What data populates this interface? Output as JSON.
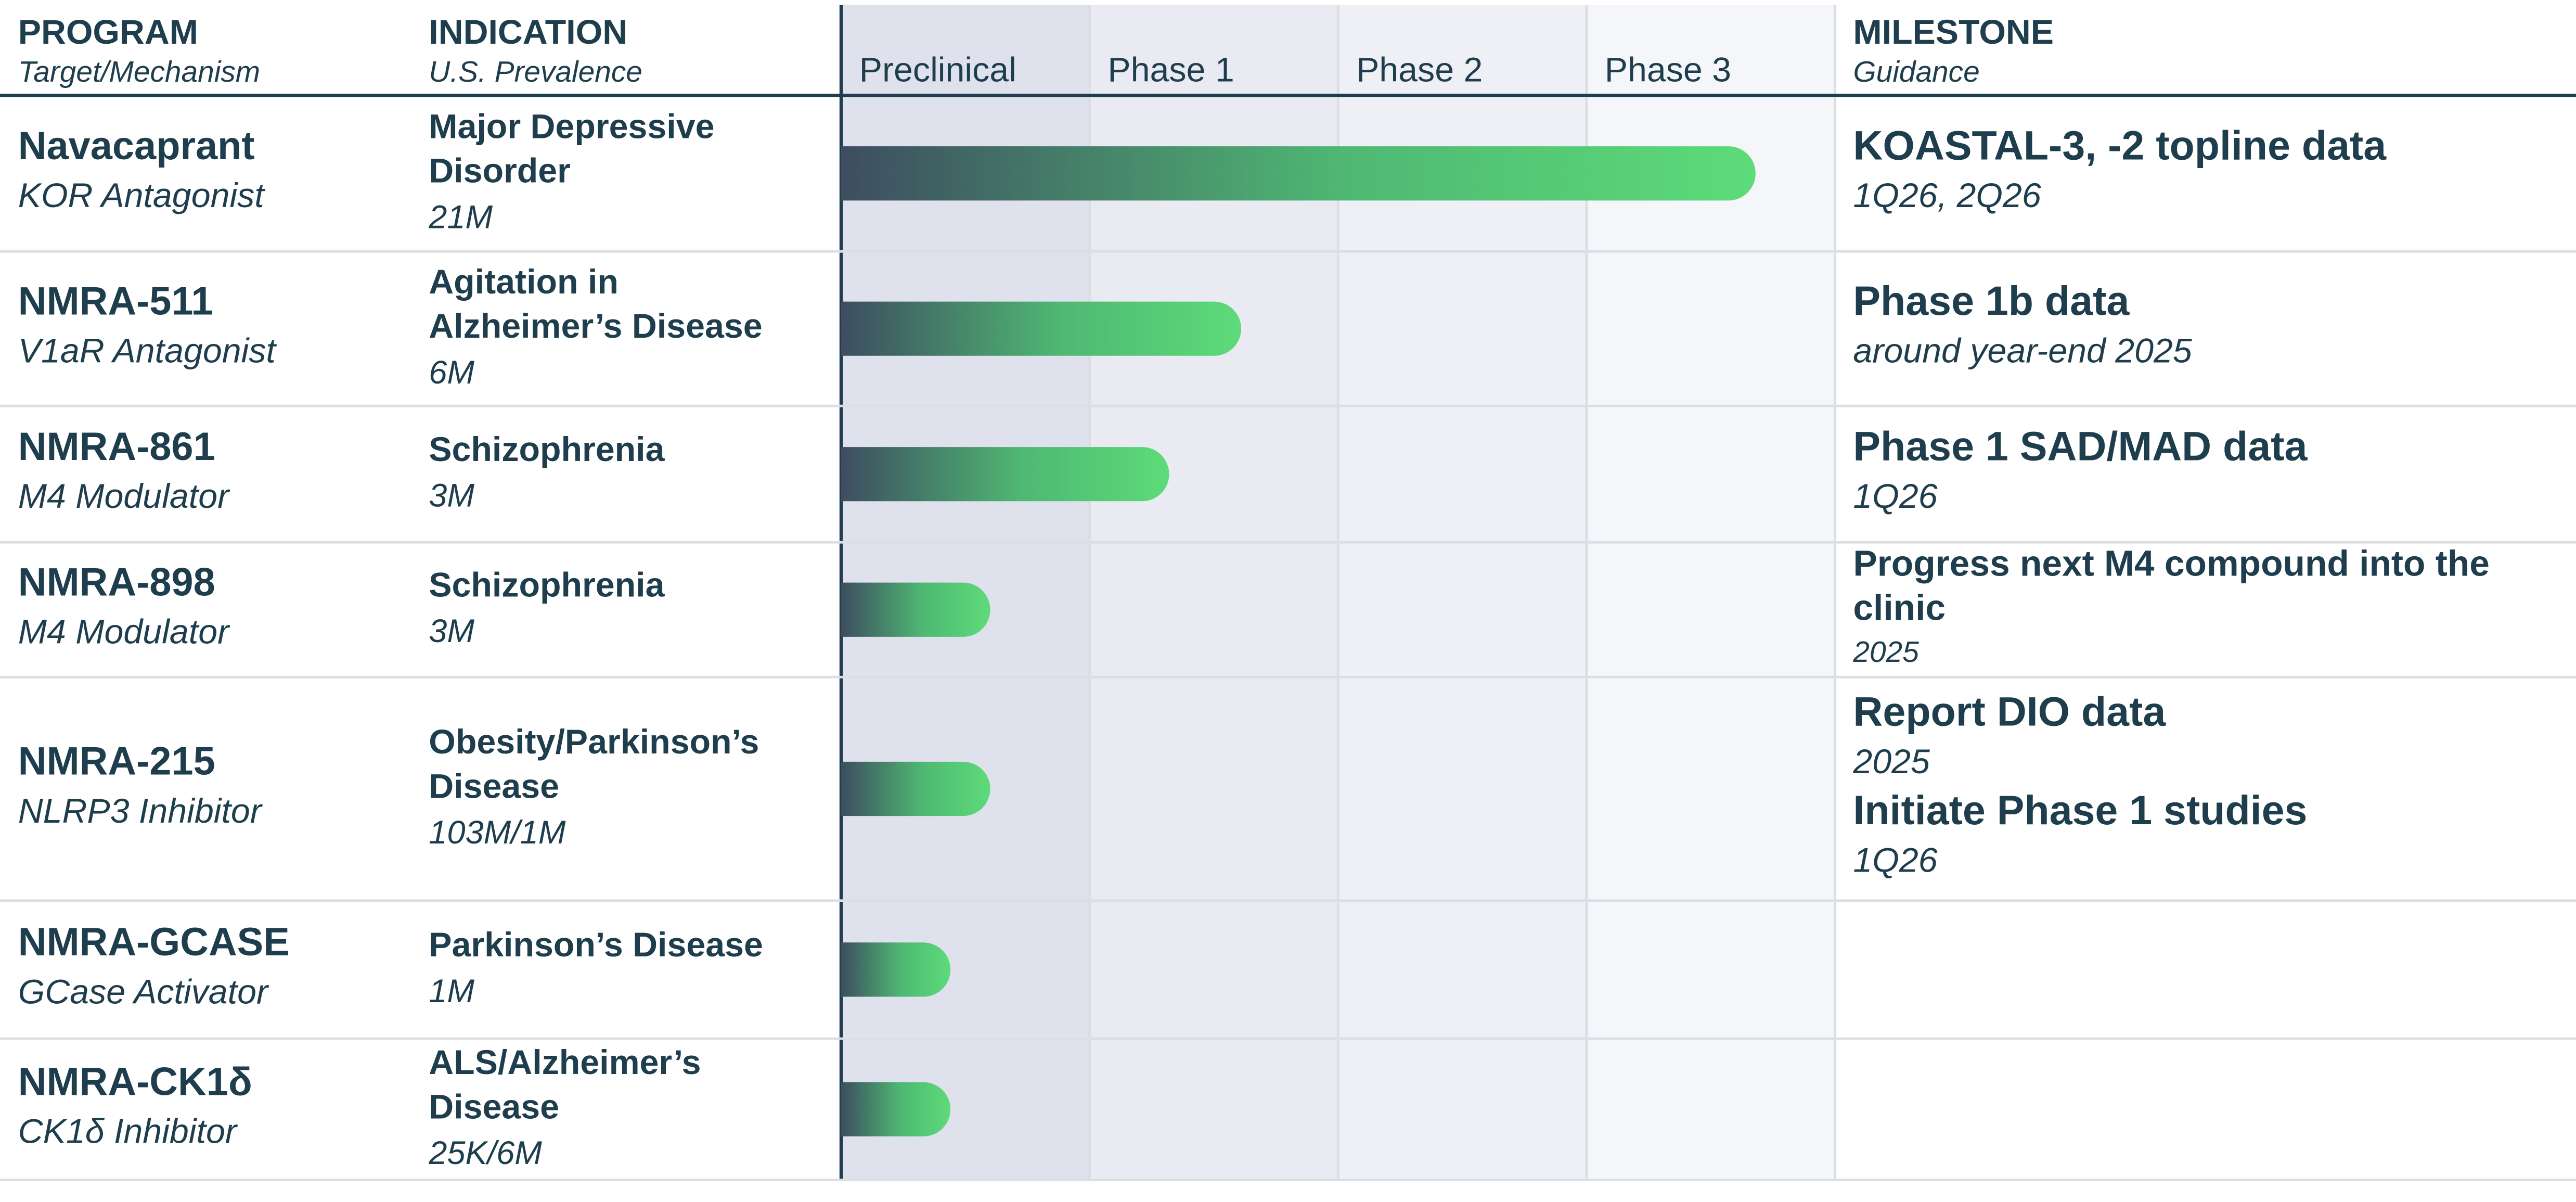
{
  "header": {
    "program": "PROGRAM",
    "program_sub": "Target/Mechanism",
    "indication": "INDICATION",
    "indication_sub": "U.S. Prevalence",
    "milestone": "MILESTONE",
    "milestone_sub": "Guidance"
  },
  "phases": [
    "Preclinical",
    "Phase 1",
    "Phase 2",
    "Phase 3"
  ],
  "rows": [
    {
      "program": "Navacaprant",
      "target": "KOR Antagonist",
      "indication": [
        "Major Depressive",
        "Disorder"
      ],
      "prevalence": "21M",
      "progress": 3.68,
      "milestones": [
        {
          "title": [
            "KOASTAL-3, -2 topline data"
          ],
          "detail": "1Q26, 2Q26"
        }
      ]
    },
    {
      "program": "NMRA-511",
      "target": "V1aR Antagonist",
      "indication": [
        "Agitation in",
        "Alzheimer’s Disease"
      ],
      "prevalence": "6M",
      "progress": 1.61,
      "milestones": [
        {
          "title": [
            "Phase 1b data"
          ],
          "detail": "around year-end 2025"
        }
      ]
    },
    {
      "program": "NMRA-861",
      "target": "M4 Modulator",
      "indication": [
        "Schizophrenia"
      ],
      "prevalence": "3M",
      "progress": 1.32,
      "milestones": [
        {
          "title": [
            "Phase 1 SAD/MAD data"
          ],
          "detail": "1Q26"
        }
      ]
    },
    {
      "program": "NMRA-898",
      "target": "M4 Modulator",
      "indication": [
        "Schizophrenia"
      ],
      "prevalence": "3M",
      "progress": 0.6,
      "milestones": [
        {
          "title": [
            "Progress next M4 compound into the",
            "clinic"
          ],
          "detail": "2025"
        }
      ]
    },
    {
      "program": "NMRA-215",
      "target": "NLRP3 Inhibitor",
      "indication": [
        "Obesity/Parkinson’s",
        "Disease"
      ],
      "prevalence": "103M/1M",
      "progress": 0.6,
      "milestones": [
        {
          "title": [
            "Report DIO data"
          ],
          "detail": "2025"
        },
        {
          "title": [
            "Initiate Phase 1 studies"
          ],
          "detail": "1Q26"
        }
      ]
    },
    {
      "program": "NMRA-GCASE",
      "target": "GCase Activator",
      "indication": [
        "Parkinson’s Disease"
      ],
      "prevalence": "1M",
      "progress": 0.44,
      "milestones": []
    },
    {
      "program": "NMRA-CK1δ",
      "target": "CK1δ Inhibitor",
      "indication": [
        "ALS/Alzheimer’s",
        "Disease"
      ],
      "prevalence": "25K/6M",
      "progress": 0.44,
      "milestones": []
    }
  ]
}
